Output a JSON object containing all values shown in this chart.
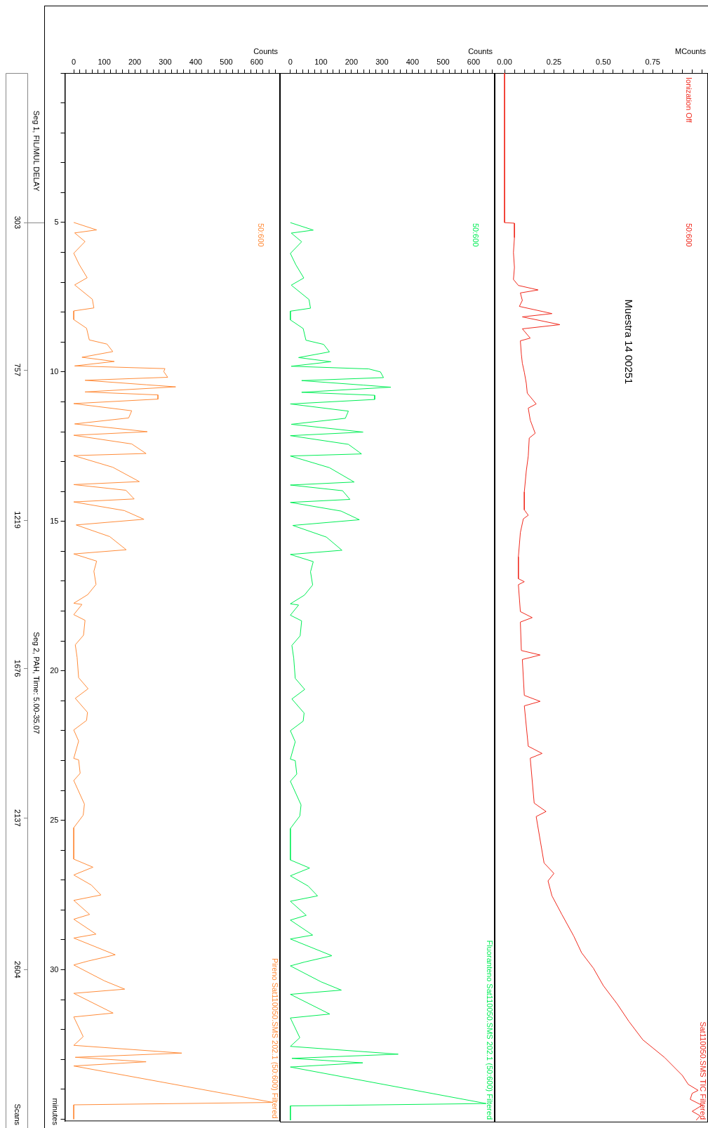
{
  "chart_data": [
    {
      "type": "line",
      "title": "Muestra 14 00251",
      "xlabel": "MCounts",
      "tick_labels": "x",
      "ylim": [
        35.07,
        0
      ],
      "xlim": [
        -0.05,
        1.03
      ],
      "xticks": [
        {
          "value": 0,
          "label": "0.00"
        },
        {
          "value": 0.05,
          "label": null
        },
        {
          "value": 0.1,
          "label": null
        },
        {
          "value": 0.15,
          "label": null
        },
        {
          "value": 0.2,
          "label": null
        },
        {
          "value": 0.25,
          "label": "0.25"
        },
        {
          "value": 0.3,
          "label": null
        },
        {
          "value": 0.35,
          "label": null
        },
        {
          "value": 0.4,
          "label": null
        },
        {
          "value": 0.45,
          "label": null
        },
        {
          "value": 0.5,
          "label": "0.50"
        },
        {
          "value": 0.55,
          "label": null
        },
        {
          "value": 0.6,
          "label": null
        },
        {
          "value": 0.65,
          "label": null
        },
        {
          "value": 0.7,
          "label": null
        },
        {
          "value": 0.75,
          "label": "0.75"
        },
        {
          "value": 0.8,
          "label": null
        },
        {
          "value": 0.85,
          "label": null
        },
        {
          "value": 0.9,
          "label": null
        },
        {
          "value": 0.95,
          "label": null
        },
        {
          "value": 1.0,
          "label": null
        }
      ],
      "annotations": [
        "Ionization Off",
        "50:600"
      ],
      "series": [
        {
          "name": "Sat110050.SMS TIC Filtered",
          "color": "#f02a1e",
          "values": [
            0,
            5.0,
            5.02,
            5.5,
            6.0,
            6.5,
            6.9,
            7.1,
            7.25,
            7.35,
            7.6,
            7.8,
            8.04,
            8.15,
            8.41,
            8.55,
            8.86,
            8.95,
            9.4,
            9.7,
            10.0,
            10.37,
            10.7,
            11.06,
            11.2,
            11.6,
            12.04,
            12.2,
            12.8,
            13.3,
            14.0,
            14.6,
            14.78,
            14.9,
            15.36,
            16.17,
            16.9,
            17.0,
            17.1,
            18.0,
            18.2,
            18.35,
            19.3,
            19.45,
            19.6,
            20.8,
            21.0,
            21.15,
            22.5,
            22.74,
            22.9,
            24.4,
            24.68,
            24.85,
            26.4,
            26.75,
            27.0,
            27.5,
            28.12,
            28.84,
            29.4,
            29.92,
            30.5,
            31.11,
            31.7,
            32.31,
            32.9,
            33.5,
            33.8,
            34.0,
            34.1,
            34.3,
            34.5,
            34.7,
            34.85,
            35.0
          ],
          "x": [
            0,
            0,
            0.05,
            0.05,
            0.045,
            0.05,
            0.045,
            0.07,
            0.17,
            0.08,
            0.09,
            0.075,
            0.24,
            0.09,
            0.28,
            0.09,
            0.13,
            0.08,
            0.085,
            0.09,
            0.1,
            0.11,
            0.115,
            0.16,
            0.12,
            0.13,
            0.155,
            0.125,
            0.12,
            0.11,
            0.1,
            0.1,
            0.12,
            0.095,
            0.08,
            0.07,
            0.07,
            0.1,
            0.07,
            0.08,
            0.14,
            0.08,
            0.085,
            0.18,
            0.09,
            0.1,
            0.18,
            0.1,
            0.12,
            0.19,
            0.13,
            0.15,
            0.21,
            0.16,
            0.2,
            0.25,
            0.22,
            0.24,
            0.29,
            0.35,
            0.39,
            0.45,
            0.5,
            0.57,
            0.63,
            0.7,
            0.81,
            0.9,
            0.93,
            0.98,
            0.95,
            0.94,
            1.0,
            0.95,
            0.99,
            0.97
          ]
        }
      ]
    },
    {
      "type": "line",
      "xlabel": "Counts",
      "tick_labels": "x",
      "ylim": [
        35.07,
        0
      ],
      "xlim": [
        -34,
        669
      ],
      "xticks": [
        0,
        {
          "value": 20,
          "label": null
        },
        {
          "value": 40,
          "label": null
        },
        {
          "value": 60,
          "label": null
        },
        {
          "value": 80,
          "label": null
        },
        100,
        {
          "value": 120,
          "label": null
        },
        {
          "value": 140,
          "label": null
        },
        {
          "value": 160,
          "label": null
        },
        {
          "value": 180,
          "label": null
        },
        200,
        {
          "value": 220,
          "label": null
        },
        {
          "value": 240,
          "label": null
        },
        {
          "value": 260,
          "label": null
        },
        {
          "value": 280,
          "label": null
        },
        300,
        {
          "value": 320,
          "label": null
        },
        {
          "value": 340,
          "label": null
        },
        {
          "value": 360,
          "label": null
        },
        {
          "value": 380,
          "label": null
        },
        400,
        {
          "value": 420,
          "label": null
        },
        {
          "value": 440,
          "label": null
        },
        {
          "value": 460,
          "label": null
        },
        {
          "value": 480,
          "label": null
        },
        500,
        {
          "value": 520,
          "label": null
        },
        {
          "value": 540,
          "label": null
        },
        {
          "value": 560,
          "label": null
        },
        {
          "value": 580,
          "label": null
        },
        600,
        {
          "value": 620,
          "label": null
        },
        {
          "value": 640,
          "label": null
        },
        {
          "value": 660,
          "label": null
        }
      ],
      "annotations": [
        "50:600"
      ],
      "series": [
        {
          "name": "Fluoranteno Sat110050.SMS 202.1 (50:600) Filtered",
          "color": "#00ee55",
          "values": [
            5.0,
            5.25,
            5.35,
            5.64,
            6.03,
            6.41,
            6.85,
            7.09,
            7.57,
            7.86,
            7.96,
            8.25,
            8.54,
            8.93,
            9.07,
            9.32,
            9.51,
            9.65,
            9.8,
            9.89,
            9.99,
            10.18,
            10.28,
            10.43,
            10.5,
            10.67,
            10.77,
            10.91,
            11.06,
            11.3,
            11.54,
            11.74,
            12.0,
            12.12,
            12.41,
            12.73,
            12.8,
            13.19,
            13.67,
            13.77,
            13.96,
            14.25,
            14.35,
            14.64,
            14.93,
            15.12,
            15.51,
            15.95,
            16.09,
            16.33,
            16.67,
            17.11,
            17.45,
            17.74,
            17.78,
            18.12,
            18.31,
            18.81,
            19.13,
            19.55,
            20.23,
            20.6,
            20.92,
            21.39,
            21.66,
            21.98,
            22.35,
            22.93,
            22.98,
            23.43,
            23.67,
            24.46,
            24.83,
            25.25,
            26.3,
            26.57,
            26.83,
            27.17,
            27.5,
            27.68,
            28.15,
            28.31,
            28.81,
            28.94,
            29.5,
            29.71,
            29.84,
            30.37,
            30.65,
            30.79,
            31.45,
            31.58,
            32.24,
            32.53,
            32.79,
            32.93,
            33.08,
            33.22,
            34.44,
            34.52,
            35.0
          ],
          "x": [
            0,
            75,
            3,
            37,
            0,
            18,
            44,
            3,
            61,
            66,
            0,
            0,
            42,
            51,
            109,
            128,
            27,
            133,
            3,
            257,
            295,
            305,
            37,
            238,
            329,
            37,
            276,
            276,
            0,
            190,
            180,
            3,
            238,
            0,
            190,
            233,
            0,
            128,
            209,
            0,
            171,
            195,
            0,
            166,
            226,
            8,
            118,
            169,
            0,
            75,
            66,
            73,
            46,
            0,
            27,
            0,
            37,
            32,
            5,
            11,
            16,
            47,
            5,
            45,
            42,
            0,
            16,
            0,
            16,
            21,
            0,
            35,
            31,
            0,
            0,
            63,
            0,
            58,
            89,
            0,
            52,
            0,
            73,
            0,
            136,
            47,
            0,
            100,
            167,
            0,
            129,
            0,
            31,
            0,
            353,
            5,
            237,
            0,
            641,
            0,
            0
          ]
        }
      ]
    },
    {
      "type": "line",
      "xlabel": "Counts",
      "ylabel": "minutes",
      "y2label": "Scans",
      "ylim": [
        35.07,
        0
      ],
      "xlim": [
        -29,
        676
      ],
      "y2lim": [
        3071,
        -157
      ],
      "yticks": [
        {
          "value": 0,
          "label": null
        },
        {
          "value": 1,
          "label": null
        },
        {
          "value": 2,
          "label": null
        },
        {
          "value": 3,
          "label": null
        },
        {
          "value": 4,
          "label": null
        },
        5,
        {
          "value": 6,
          "label": null
        },
        {
          "value": 7,
          "label": null
        },
        {
          "value": 8,
          "label": null
        },
        {
          "value": 9,
          "label": null
        },
        10,
        {
          "value": 11,
          "label": null
        },
        {
          "value": 12,
          "label": null
        },
        {
          "value": 13,
          "label": null
        },
        {
          "value": 14,
          "label": null
        },
        15,
        {
          "value": 16,
          "label": null
        },
        {
          "value": 17,
          "label": null
        },
        {
          "value": 18,
          "label": null
        },
        {
          "value": 19,
          "label": null
        },
        20,
        {
          "value": 21,
          "label": null
        },
        {
          "value": 22,
          "label": null
        },
        {
          "value": 23,
          "label": null
        },
        {
          "value": 24,
          "label": null
        },
        25,
        {
          "value": 26,
          "label": null
        },
        {
          "value": 27,
          "label": null
        },
        {
          "value": 28,
          "label": null
        },
        {
          "value": 29,
          "label": null
        },
        30,
        {
          "value": 31,
          "label": null
        },
        {
          "value": 32,
          "label": null
        },
        {
          "value": 33,
          "label": null
        },
        {
          "value": 34,
          "label": null
        },
        {
          "value": 35,
          "label": null
        }
      ],
      "y2ticks": [
        303,
        757,
        1219,
        1676,
        2137,
        2604
      ],
      "xticks": [
        0,
        {
          "value": 20,
          "label": null
        },
        {
          "value": 40,
          "label": null
        },
        {
          "value": 60,
          "label": null
        },
        {
          "value": 80,
          "label": null
        },
        100,
        {
          "value": 120,
          "label": null
        },
        {
          "value": 140,
          "label": null
        },
        {
          "value": 160,
          "label": null
        },
        {
          "value": 180,
          "label": null
        },
        200,
        {
          "value": 220,
          "label": null
        },
        {
          "value": 240,
          "label": null
        },
        {
          "value": 260,
          "label": null
        },
        {
          "value": 280,
          "label": null
        },
        300,
        {
          "value": 320,
          "label": null
        },
        {
          "value": 340,
          "label": null
        },
        {
          "value": 360,
          "label": null
        },
        {
          "value": 380,
          "label": null
        },
        400,
        {
          "value": 420,
          "label": null
        },
        {
          "value": 440,
          "label": null
        },
        {
          "value": 460,
          "label": null
        },
        {
          "value": 480,
          "label": null
        },
        500,
        {
          "value": 520,
          "label": null
        },
        {
          "value": 540,
          "label": null
        },
        {
          "value": 560,
          "label": null
        },
        {
          "value": 580,
          "label": null
        },
        600,
        {
          "value": 620,
          "label": null
        },
        {
          "value": 640,
          "label": null
        },
        {
          "value": 660,
          "label": null
        }
      ],
      "annotations": [
        "50:600",
        "Seg 1, FIL/MUL DELAY",
        "Seg 2, PAH, Time: 5.00-35.07"
      ],
      "series": [
        {
          "name": "Pireno Sat110050.SMS 202.1 (50:600) Filtered",
          "color": "#ff8c3a",
          "values": [
            5.0,
            5.25,
            5.35,
            5.64,
            6.03,
            6.41,
            6.85,
            7.09,
            7.57,
            7.86,
            7.96,
            8.25,
            8.54,
            8.93,
            9.07,
            9.32,
            9.51,
            9.65,
            9.8,
            9.89,
            9.99,
            10.18,
            10.28,
            10.43,
            10.5,
            10.67,
            10.77,
            10.91,
            11.06,
            11.3,
            11.54,
            11.74,
            12.0,
            12.12,
            12.41,
            12.73,
            12.8,
            13.19,
            13.67,
            13.77,
            13.96,
            14.25,
            14.35,
            14.64,
            14.93,
            15.12,
            15.51,
            15.95,
            16.09,
            16.33,
            16.67,
            17.11,
            17.45,
            17.74,
            17.78,
            18.12,
            18.31,
            18.81,
            19.13,
            19.55,
            20.23,
            20.6,
            20.92,
            21.39,
            21.66,
            21.98,
            22.35,
            22.93,
            22.98,
            23.43,
            23.67,
            24.46,
            24.83,
            25.25,
            26.3,
            26.57,
            26.83,
            27.17,
            27.5,
            27.68,
            28.15,
            28.31,
            28.81,
            28.94,
            29.5,
            29.71,
            29.84,
            30.37,
            30.65,
            30.79,
            31.45,
            31.58,
            32.24,
            32.53,
            32.79,
            32.93,
            33.08,
            33.22,
            34.44,
            34.52,
            35.0
          ],
          "x": [
            0,
            75,
            3,
            37,
            0,
            18,
            44,
            3,
            61,
            66,
            0,
            0,
            42,
            51,
            109,
            128,
            27,
            133,
            3,
            299,
            295,
            308,
            37,
            238,
            334,
            37,
            276,
            276,
            0,
            190,
            180,
            3,
            241,
            0,
            190,
            237,
            0,
            128,
            215,
            0,
            171,
            198,
            0,
            166,
            230,
            8,
            118,
            172,
            0,
            75,
            66,
            73,
            46,
            0,
            27,
            0,
            37,
            32,
            5,
            11,
            16,
            47,
            5,
            45,
            42,
            0,
            16,
            0,
            16,
            21,
            0,
            35,
            31,
            0,
            0,
            63,
            0,
            58,
            89,
            0,
            52,
            0,
            73,
            0,
            136,
            47,
            0,
            100,
            167,
            0,
            129,
            0,
            31,
            0,
            354,
            5,
            237,
            0,
            653,
            0,
            0
          ]
        }
      ]
    }
  ]
}
